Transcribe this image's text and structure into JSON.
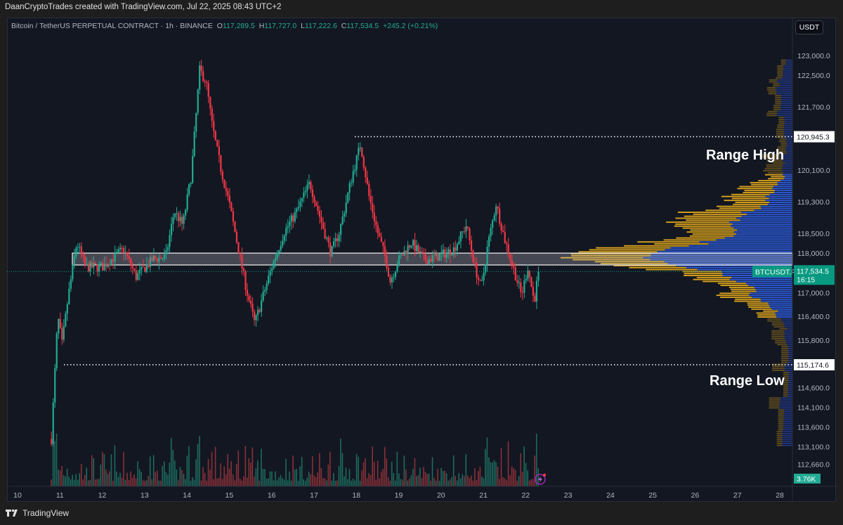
{
  "header": {
    "attribution": "DaanCryptoTrades created with TradingView.com, Jul 22, 2025 08:43 UTC+2"
  },
  "legend": {
    "symbol": "Bitcoin / TetherUS PERPETUAL CONTRACT · 1h · BINANCE",
    "o_label": "O",
    "o": "117,289.5",
    "h_label": "H",
    "h": "117,727.0",
    "l_label": "L",
    "l": "117,222.6",
    "c_label": "C",
    "c": "117,534.5",
    "change": "+245.2 (+0.21%)"
  },
  "currency_button": "USDT",
  "annotations": {
    "range_high": "Range High",
    "range_low": "Range Low"
  },
  "footer": {
    "brand": "TradingView"
  },
  "colors": {
    "up": "#22ab94",
    "down": "#f23645",
    "background": "#131722",
    "profile_value_area_left": "#d9a21b",
    "profile_value_area_right": "#2c5ad6",
    "profile_outside_left": "#5e4c1f",
    "profile_outside_right": "#1f3478",
    "current_price": "#089981"
  },
  "chart_data": {
    "type": "candlestick",
    "timeframe": "1h",
    "x_unit": "day of July 2025",
    "x_ticks": [
      "10",
      "11",
      "12",
      "13",
      "14",
      "15",
      "16",
      "17",
      "18",
      "19",
      "20",
      "21",
      "22",
      "23",
      "24",
      "25",
      "26",
      "27",
      "28"
    ],
    "y_ticks": [
      "123,000.0",
      "122,500.0",
      "121,700.0",
      "120,100.0",
      "119,300.0",
      "118,500.0",
      "118,000.0",
      "117,000.0",
      "116,400.0",
      "115,800.0",
      "114,600.0",
      "114,100.0",
      "113,600.0",
      "113,100.0",
      "112,660.0"
    ],
    "ylim": [
      112300,
      123600
    ],
    "approx_close_path": [
      [
        10.8,
        113300
      ],
      [
        10.95,
        116400
      ],
      [
        11.05,
        115700
      ],
      [
        11.2,
        116930
      ],
      [
        11.4,
        118270
      ],
      [
        11.6,
        117650
      ],
      [
        12.0,
        117650
      ],
      [
        12.5,
        118100
      ],
      [
        12.8,
        117400
      ],
      [
        13.2,
        117850
      ],
      [
        13.5,
        117900
      ],
      [
        13.7,
        119070
      ],
      [
        13.9,
        118700
      ],
      [
        14.1,
        119960
      ],
      [
        14.3,
        122630
      ],
      [
        14.45,
        122350
      ],
      [
        14.6,
        121200
      ],
      [
        14.8,
        120140
      ],
      [
        15.0,
        119250
      ],
      [
        15.2,
        118180
      ],
      [
        15.4,
        117100
      ],
      [
        15.6,
        116220
      ],
      [
        15.8,
        116930
      ],
      [
        16.0,
        117640
      ],
      [
        16.3,
        118540
      ],
      [
        16.6,
        119070
      ],
      [
        16.9,
        119780
      ],
      [
        17.2,
        118700
      ],
      [
        17.4,
        117990
      ],
      [
        17.6,
        118540
      ],
      [
        17.9,
        119960
      ],
      [
        18.1,
        120760
      ],
      [
        18.3,
        119430
      ],
      [
        18.5,
        118540
      ],
      [
        18.7,
        117830
      ],
      [
        18.8,
        117290
      ],
      [
        19.0,
        117830
      ],
      [
        19.3,
        118270
      ],
      [
        19.6,
        117830
      ],
      [
        19.9,
        117900
      ],
      [
        20.3,
        118100
      ],
      [
        20.6,
        118710
      ],
      [
        20.8,
        117650
      ],
      [
        20.95,
        117100
      ],
      [
        21.1,
        118180
      ],
      [
        21.3,
        119250
      ],
      [
        21.5,
        118360
      ],
      [
        21.7,
        117650
      ],
      [
        21.9,
        116930
      ],
      [
        22.05,
        117650
      ],
      [
        22.2,
        116760
      ],
      [
        22.3,
        117534.5
      ]
    ],
    "horizontal_levels": [
      {
        "price": 120945.3,
        "label": "120,945.3"
      },
      {
        "price": 115174.6,
        "label": "115,174.6"
      }
    ],
    "zone": [
      117700,
      118000
    ],
    "current_price": {
      "symbol": "BTCUSDT.P",
      "price": "117,534.5",
      "countdown": "16:15"
    },
    "volume_label": "3.76K",
    "volume_profile": true
  }
}
